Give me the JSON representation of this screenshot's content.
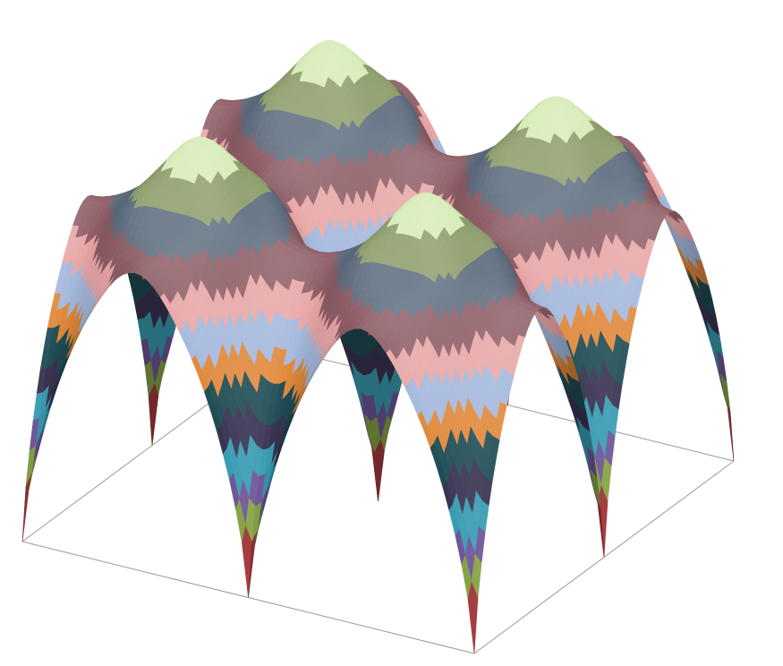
{
  "chart_data": {
    "type": "surface",
    "colors": [
      "#3d6394",
      "#a33a3c",
      "#86a447",
      "#70579a",
      "#3a9db3",
      "#3a3452",
      "#1f4c55",
      "#e0883a",
      "#a3b8dc",
      "#e8a6a6",
      "#8e5e66",
      "#5f6e80",
      "#8e9e6c",
      "#d8ecb8"
    ]
  }
}
